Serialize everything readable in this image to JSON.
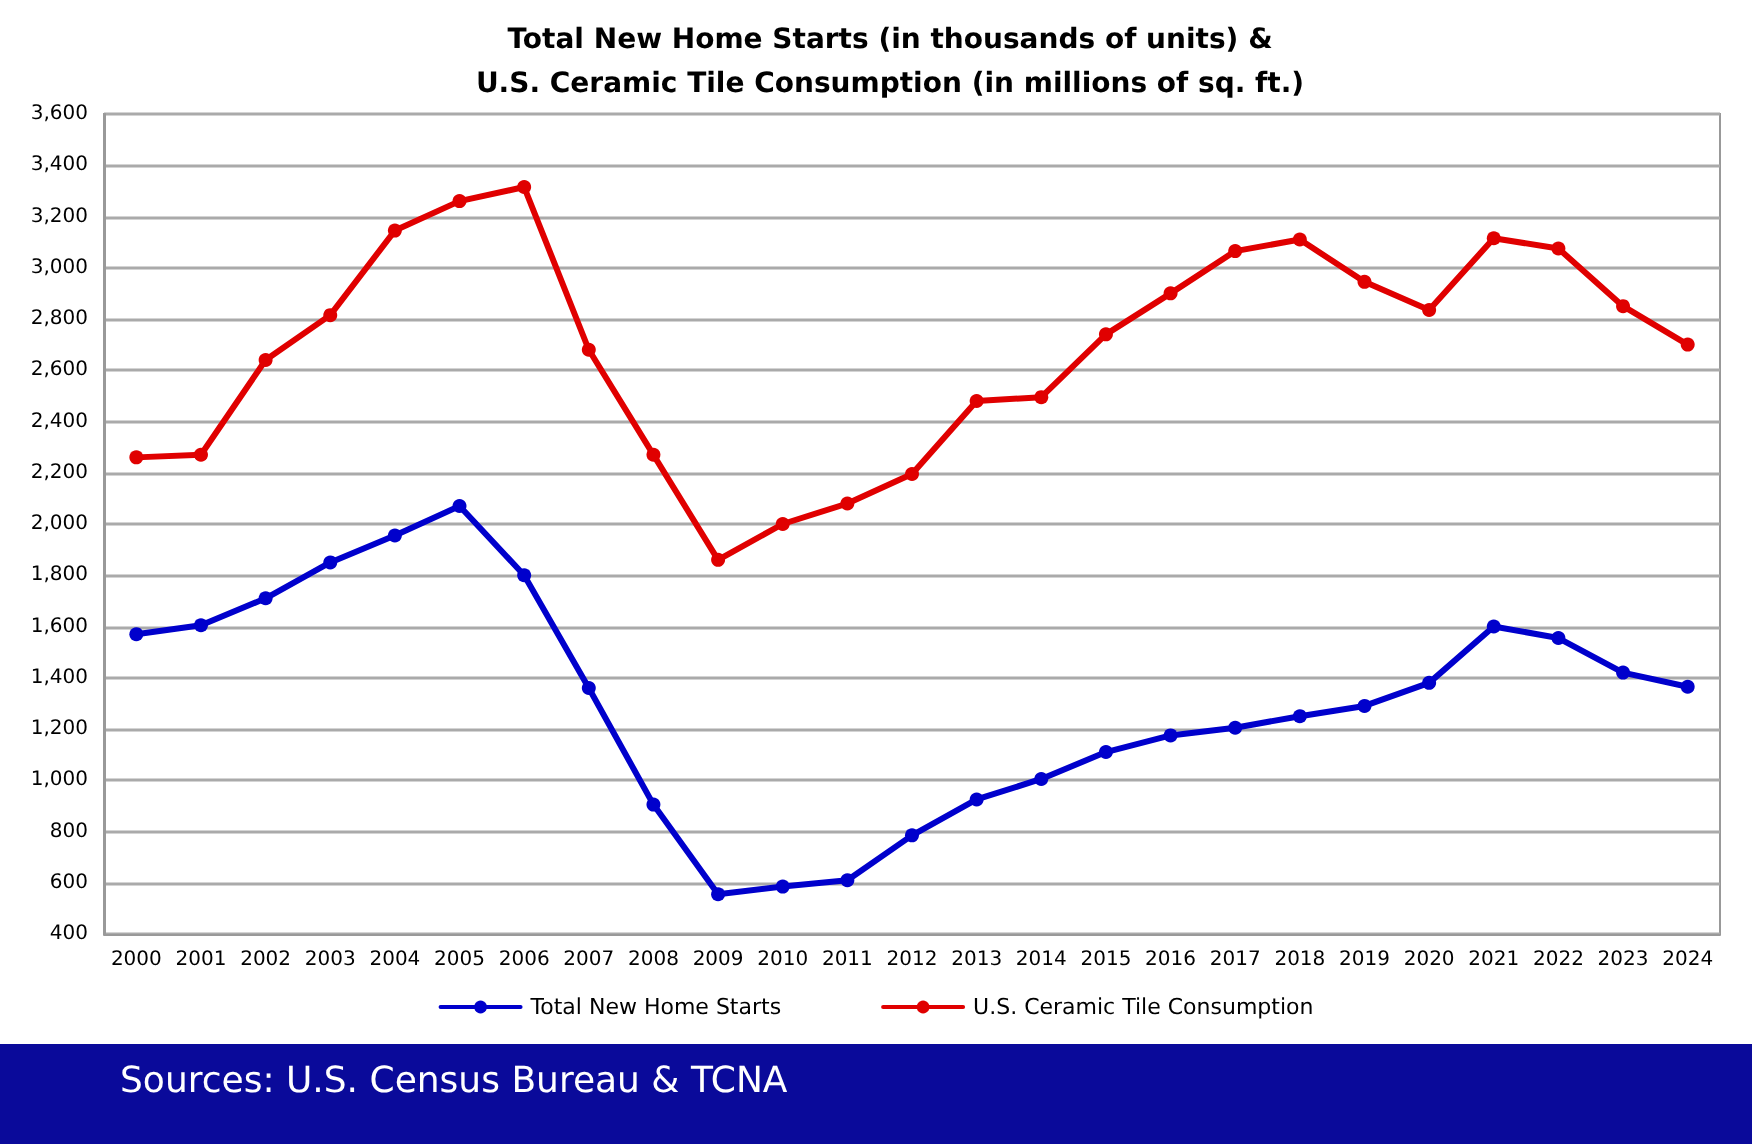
{
  "chart_data": {
    "type": "line",
    "title": "Total New Home Starts (in thousands of units) &\nU.S. Ceramic Tile Consumption (in millions of sq. ft.)",
    "annotations": [
      "Sources: U.S. Census Bureau & TCNA"
    ],
    "categories": [
      "2000",
      "2001",
      "2002",
      "2003",
      "2004",
      "2005",
      "2006",
      "2007",
      "2008",
      "2009",
      "2010",
      "2011",
      "2012",
      "2013",
      "2014",
      "2015",
      "2016",
      "2017",
      "2018",
      "2019",
      "2020",
      "2021",
      "2022",
      "2023",
      "2024"
    ],
    "series": [
      {
        "name": "Total New Home Starts",
        "color": "#0000cc",
        "values": [
          1570,
          1605,
          1710,
          1850,
          1955,
          2070,
          1800,
          1360,
          905,
          555,
          585,
          610,
          785,
          925,
          1005,
          1110,
          1175,
          1205,
          1250,
          1290,
          1380,
          1600,
          1555,
          1420,
          1365
        ]
      },
      {
        "name": "U.S. Ceramic Tile Consumption",
        "color": "#e00000",
        "values": [
          2260,
          2270,
          2640,
          2815,
          3145,
          3260,
          3315,
          2680,
          2270,
          1860,
          2000,
          2080,
          2195,
          2480,
          2495,
          2740,
          2900,
          3065,
          3110,
          2945,
          2835,
          3115,
          3075,
          2850,
          2700
        ]
      }
    ],
    "ylim": [
      400,
      3600
    ],
    "yticks": [
      400,
      600,
      800,
      {
        "value": 1000,
        "label": "1,000"
      },
      {
        "value": 1200,
        "label": "1,200"
      },
      {
        "value": 1400,
        "label": "1,400"
      },
      {
        "value": 1600,
        "label": "1,600"
      },
      {
        "value": 1800,
        "label": "1,800"
      },
      {
        "value": 2000,
        "label": "2,000"
      },
      {
        "value": 2200,
        "label": "2,200"
      },
      {
        "value": 2400,
        "label": "2,400"
      },
      {
        "value": 2600,
        "label": "2,600"
      },
      {
        "value": 2800,
        "label": "2,800"
      },
      {
        "value": 3000,
        "label": "3,000"
      },
      {
        "value": 3200,
        "label": "3,200"
      },
      {
        "value": 3400,
        "label": "3,400"
      },
      {
        "value": 3600,
        "label": "3,600"
      }
    ],
    "grid": "y",
    "legend": "bottom",
    "marker": "circle",
    "line_style": "solid"
  }
}
